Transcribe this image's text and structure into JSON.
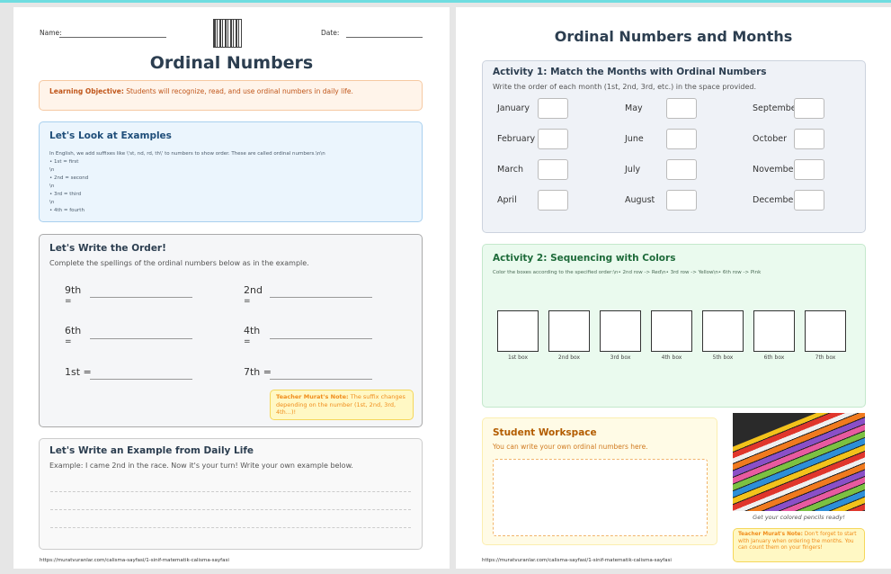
{
  "left": {
    "name_label": "Name:",
    "date_label": "Date:",
    "title": "Ordinal Numbers",
    "objective": {
      "label": "Learning Objective:",
      "text": " Students will recognize, read, and use ordinal numbers in daily life."
    },
    "examples": {
      "title": "Let's Look at Examples",
      "body": "In English, we add suffixes like \\'st, nd, rd, th\\' to numbers to show order. These are called ordinal numbers.\\n\\n\n• 1st = first\n\\n\n• 2nd = second\n\\n\n• 3rd = third\n\\n\n• 4th = fourth"
    },
    "order": {
      "title": "Let's Write the Order!",
      "subtitle": "Complete the spellings of the ordinal numbers below as in the example.",
      "items": [
        {
          "n": "9th",
          "eq": "="
        },
        {
          "n": "2nd",
          "eq": "="
        },
        {
          "n": "6th",
          "eq": "="
        },
        {
          "n": "4th",
          "eq": "="
        },
        {
          "n": "1st =",
          "eq": ""
        },
        {
          "n": "7th =",
          "eq": ""
        }
      ],
      "note": {
        "label": "Teacher Murat's Note:",
        "text": " The suffix changes depending on the number (1st, 2nd, 3rd, 4th...)!"
      }
    },
    "daily": {
      "title": "Let's Write an Example from Daily Life",
      "subtitle": "Example: I came 2nd in the race. Now it's your turn! Write your own example below."
    },
    "footer": "https://muratvuranlar.com/calisma-sayfasi/1-sinif-matematik-calisma-sayfasi"
  },
  "right": {
    "title": "Ordinal Numbers and Months",
    "activity1": {
      "title": "Activity 1: Match the Months with Ordinal Numbers",
      "subtitle": "Write the order of each month (1st, 2nd, 3rd, etc.) in the space provided.",
      "months": [
        "January",
        "May",
        "September",
        "February",
        "June",
        "October",
        "March",
        "July",
        "November",
        "April",
        "August",
        "December"
      ]
    },
    "activity2": {
      "title": "Activity 2: Sequencing with Colors",
      "subtitle": "Color the boxes according to the specified order:\\n• 2nd row -> Red\\n• 3rd row -> Yellow\\n• 6th row -> Pink",
      "boxes": [
        "1st box",
        "2nd box",
        "3rd box",
        "4th box",
        "5th box",
        "6th box",
        "7th box"
      ]
    },
    "workspace": {
      "title": "Student Workspace",
      "subtitle": "You can write your own ordinal numbers here."
    },
    "image_caption": "Get your colored pencils ready!",
    "note": {
      "label": "Teacher Murat's Note:",
      "text": " Don't forget to start with January when ordering the months. You can count them on your fingers!"
    },
    "footer": "https://muratvuranlar.com/calisma-sayfasi/1-sinif-matematik-calisma-sayfasi"
  },
  "colors": {
    "title": "#2c3e50",
    "objective": "#c0561a",
    "examples": "#1f4e79",
    "activity2": "#1e6b3a",
    "workspace": "#b35c00",
    "note": "#f08c1a"
  }
}
